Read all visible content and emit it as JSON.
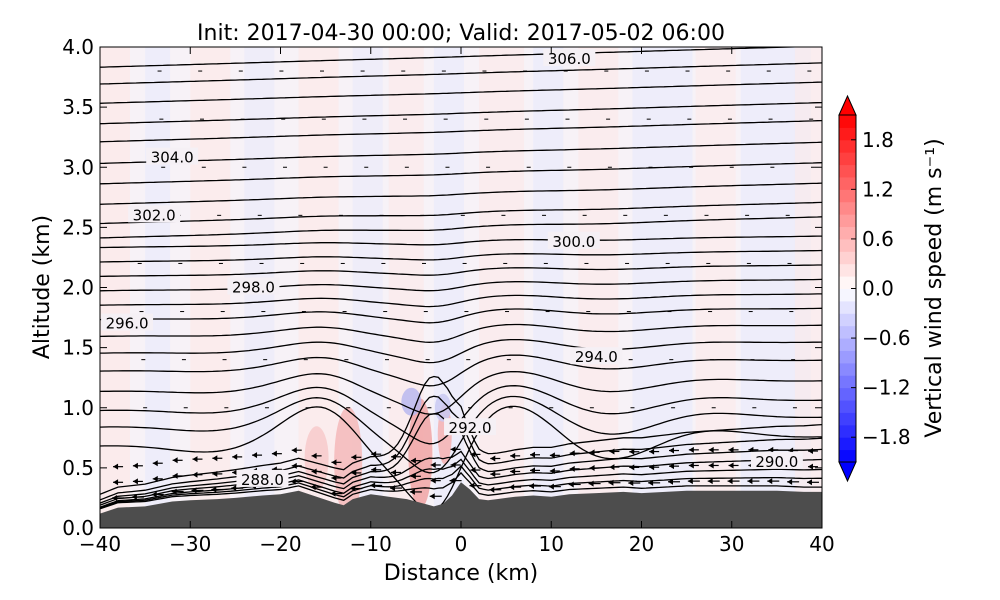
{
  "chart_data": {
    "type": "cross-section",
    "title": "Init: 2017-04-30 00:00; Valid: 2017-05-02 06:00",
    "xlabel": "Distance (km)",
    "ylabel": "Altitude (km)",
    "xlim": [
      -40,
      40
    ],
    "ylim": [
      0.0,
      4.0
    ],
    "xticks": [
      -40,
      -30,
      -20,
      -10,
      0,
      10,
      20,
      30,
      40
    ],
    "xtick_labels": [
      "−40",
      "−30",
      "−20",
      "−10",
      "0",
      "10",
      "20",
      "30",
      "40"
    ],
    "yticks": [
      0.0,
      0.5,
      1.0,
      1.5,
      2.0,
      2.5,
      3.0,
      3.5,
      4.0
    ],
    "ytick_labels": [
      "0.0",
      "0.5",
      "1.0",
      "1.5",
      "2.0",
      "2.5",
      "3.0",
      "3.5",
      "4.0"
    ],
    "colorbar": {
      "label": "Vertical wind speed (m s⁻¹)",
      "range": [
        -2.1,
        2.1
      ],
      "ticks": [
        1.8,
        1.2,
        0.6,
        0.0,
        -0.6,
        -1.2,
        -1.8
      ],
      "tick_labels": [
        "1.8",
        "1.2",
        "0.6",
        "0.0",
        "−0.6",
        "−1.2",
        "−1.8"
      ],
      "colormap": "bwr",
      "extend": "both"
    },
    "terrain": {
      "color": "#4d4d4d",
      "x": [
        -40,
        -38,
        -35,
        -32,
        -30,
        -27,
        -25,
        -22,
        -20,
        -18,
        -16,
        -14,
        -13,
        -12,
        -10,
        -8,
        -6,
        -4,
        -3,
        -2,
        -1,
        0,
        1,
        2,
        3,
        4,
        6,
        8,
        10,
        12,
        15,
        18,
        20,
        25,
        30,
        35,
        38,
        40
      ],
      "z": [
        0.12,
        0.17,
        0.18,
        0.22,
        0.23,
        0.24,
        0.25,
        0.27,
        0.28,
        0.31,
        0.26,
        0.21,
        0.19,
        0.24,
        0.28,
        0.26,
        0.24,
        0.2,
        0.18,
        0.2,
        0.27,
        0.38,
        0.32,
        0.24,
        0.23,
        0.24,
        0.26,
        0.27,
        0.26,
        0.28,
        0.29,
        0.3,
        0.29,
        0.31,
        0.31,
        0.31,
        0.3,
        0.3
      ]
    },
    "contour_labels": [
      {
        "text": "306.0",
        "x": 12.0,
        "y": 3.9
      },
      {
        "text": "304.0",
        "x": -32.0,
        "y": 3.08
      },
      {
        "text": "302.0",
        "x": -34.0,
        "y": 2.6
      },
      {
        "text": "300.0",
        "x": 12.5,
        "y": 2.38
      },
      {
        "text": "298.0",
        "x": -23.0,
        "y": 2.0
      },
      {
        "text": "296.0",
        "x": -37.0,
        "y": 1.7
      },
      {
        "text": "294.0",
        "x": 15.0,
        "y": 1.42
      },
      {
        "text": "292.0",
        "x": 1.0,
        "y": 0.83
      },
      {
        "text": "290.0",
        "x": 35.0,
        "y": 0.55
      },
      {
        "text": "288.0",
        "x": -22.0,
        "y": 0.4
      }
    ]
  }
}
